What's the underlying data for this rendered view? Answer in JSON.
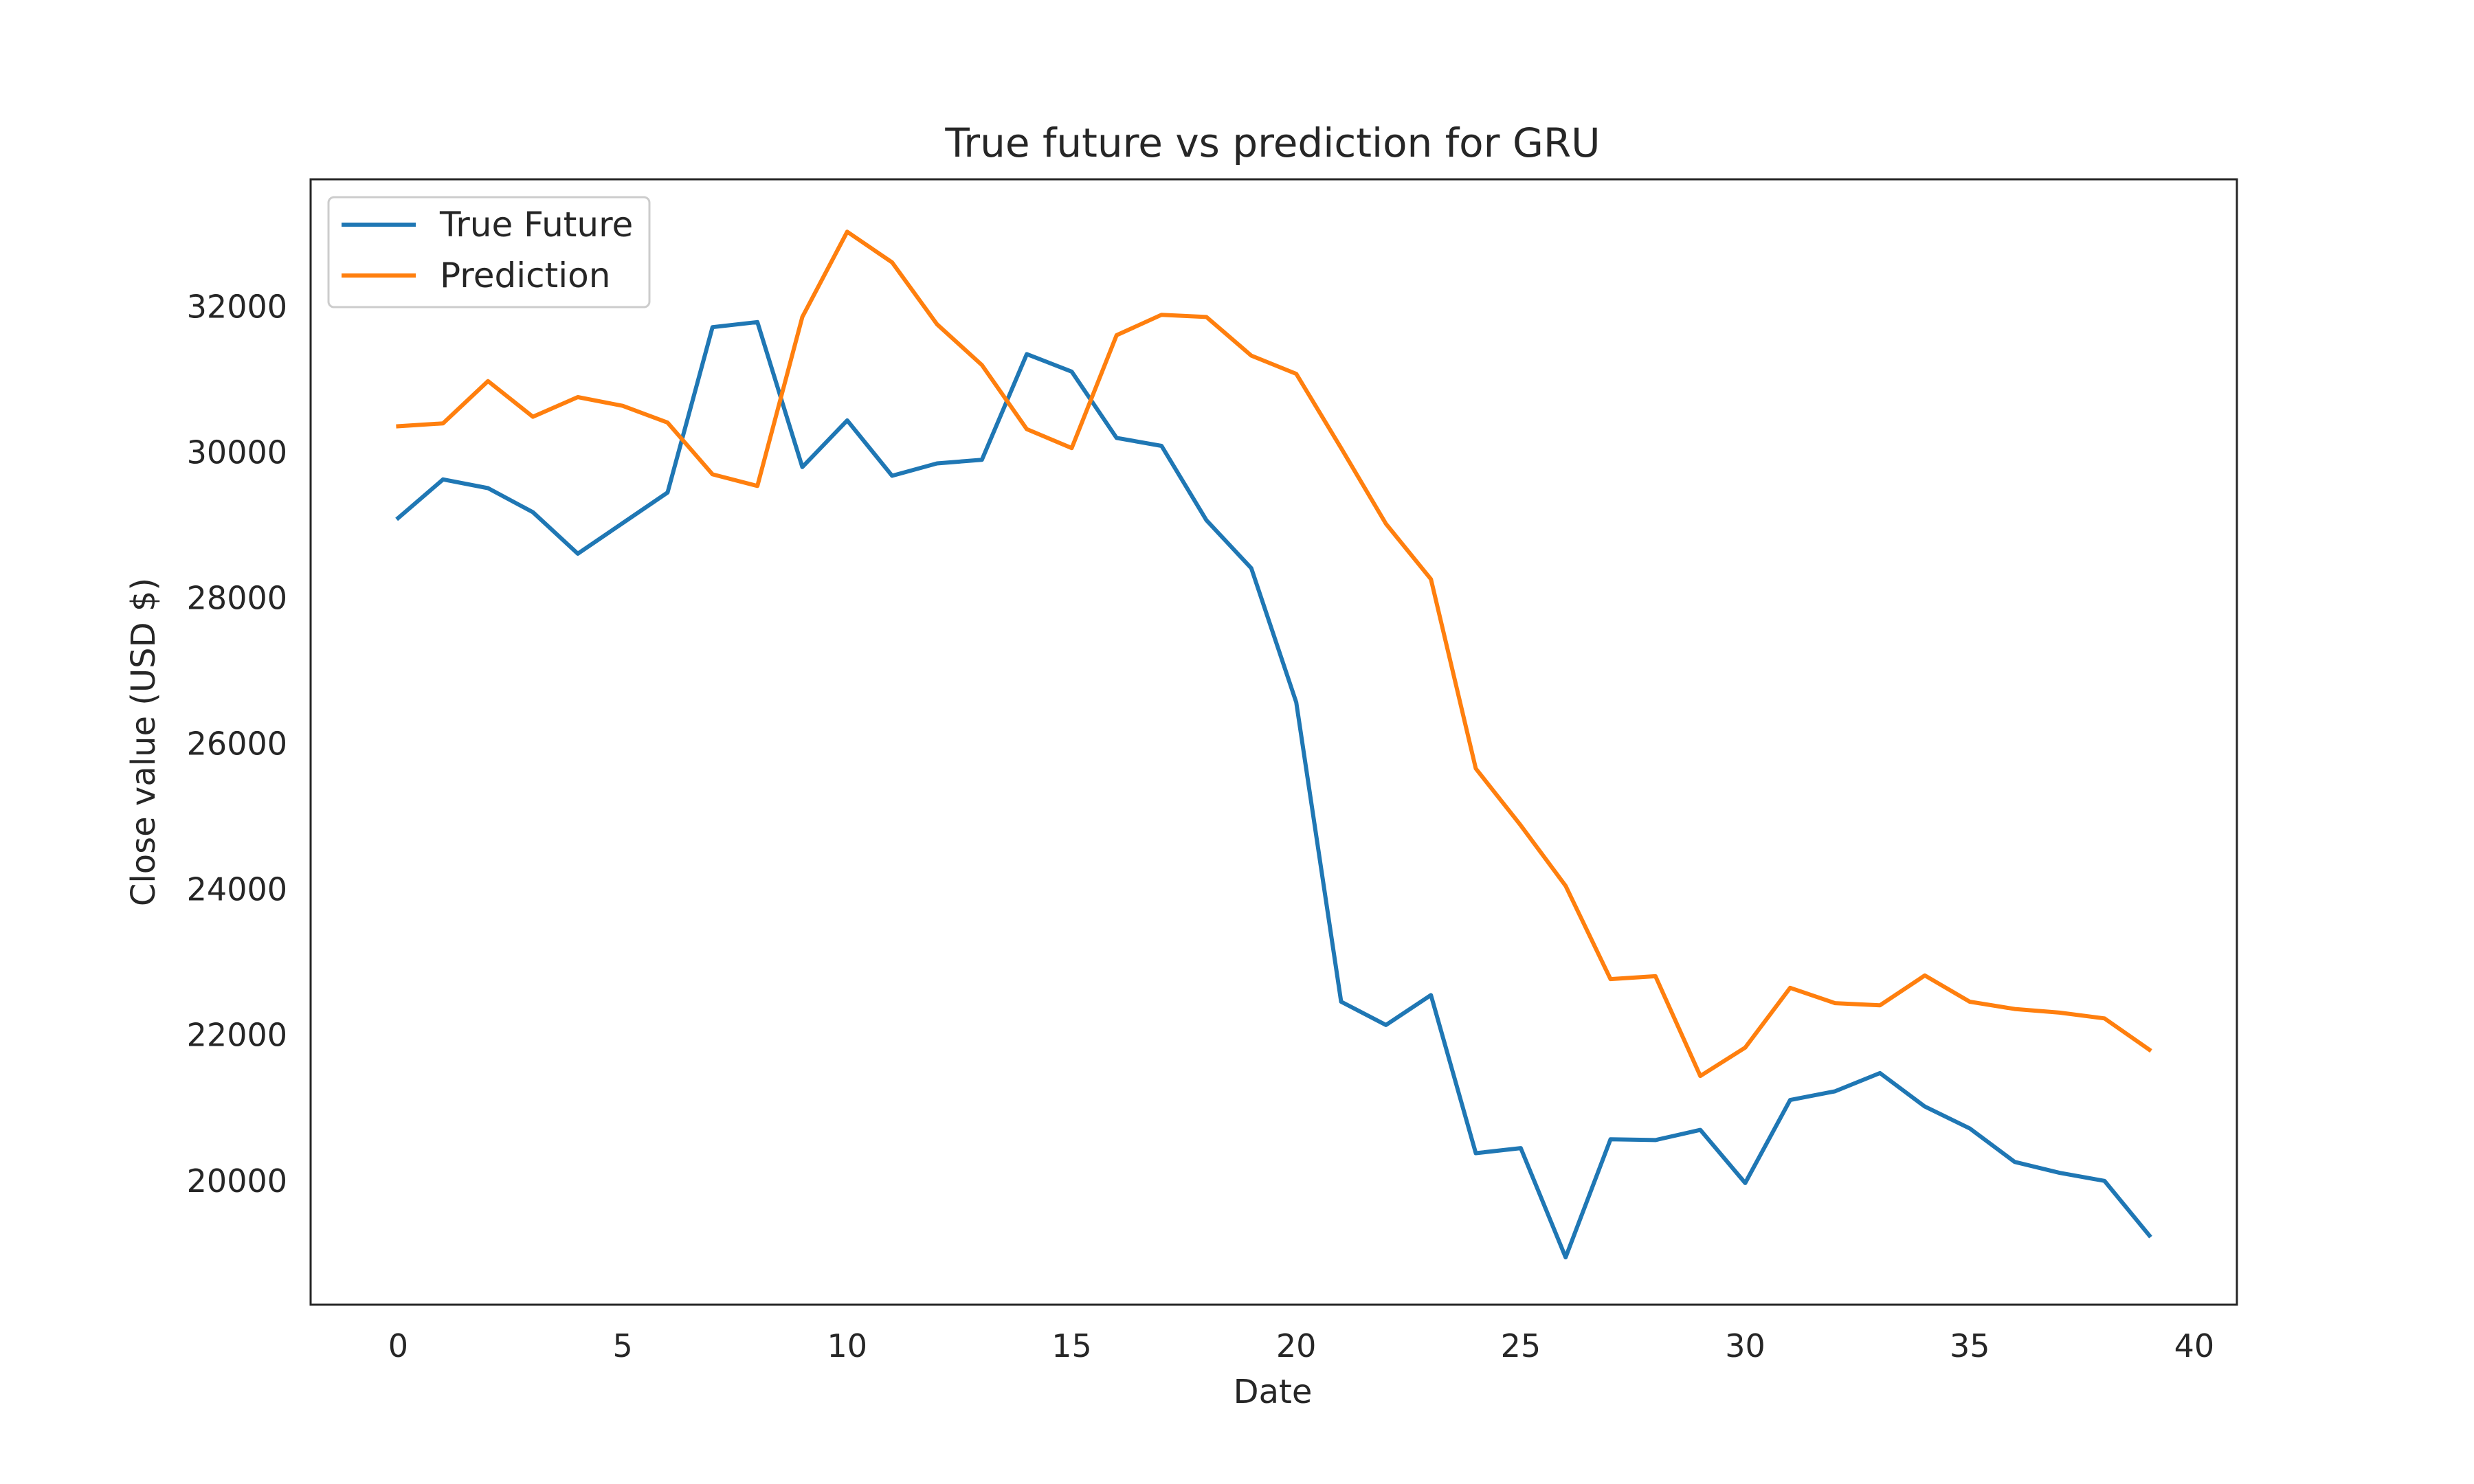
{
  "chart_data": {
    "type": "line",
    "title": "True future vs prediction for GRU",
    "xlabel": "Date",
    "ylabel": "Close value (USD $)",
    "xlim": [
      -1.95,
      40.95
    ],
    "ylim": [
      18300,
      33750
    ],
    "xticks": [
      0,
      5,
      10,
      15,
      20,
      25,
      30,
      35,
      40
    ],
    "yticks": [
      20000,
      22000,
      24000,
      26000,
      28000,
      30000,
      32000
    ],
    "grid": false,
    "legend_position": "upper-left",
    "x": [
      0,
      1,
      2,
      3,
      4,
      5,
      6,
      7,
      8,
      9,
      10,
      11,
      12,
      13,
      14,
      15,
      16,
      17,
      18,
      19,
      20,
      21,
      22,
      23,
      24,
      25,
      26,
      27,
      28,
      29,
      30,
      31,
      32,
      33,
      34,
      35,
      36,
      37,
      38,
      39
    ],
    "series": [
      {
        "name": "True Future",
        "color": "#1f77b4",
        "values": [
          29100,
          29630,
          29510,
          29180,
          28610,
          29030,
          29450,
          31720,
          31790,
          29800,
          30440,
          29680,
          29850,
          29900,
          31350,
          31110,
          30200,
          30090,
          29070,
          28410,
          26570,
          22460,
          22140,
          22550,
          20380,
          20450,
          18950,
          20570,
          20560,
          20700,
          19970,
          21110,
          21230,
          21480,
          21020,
          20720,
          20260,
          20110,
          20000,
          19250
        ]
      },
      {
        "name": "Prediction",
        "color": "#ff7f0e",
        "values": [
          30360,
          30400,
          30980,
          30490,
          30760,
          30640,
          30410,
          29700,
          29540,
          31860,
          33030,
          32610,
          31760,
          31200,
          30320,
          30060,
          31610,
          31890,
          31860,
          31330,
          31080,
          30060,
          29020,
          28260,
          25660,
          24880,
          24050,
          22770,
          22810,
          21440,
          21830,
          22650,
          22440,
          22410,
          22820,
          22460,
          22360,
          22310,
          22230,
          21800
        ]
      }
    ]
  }
}
